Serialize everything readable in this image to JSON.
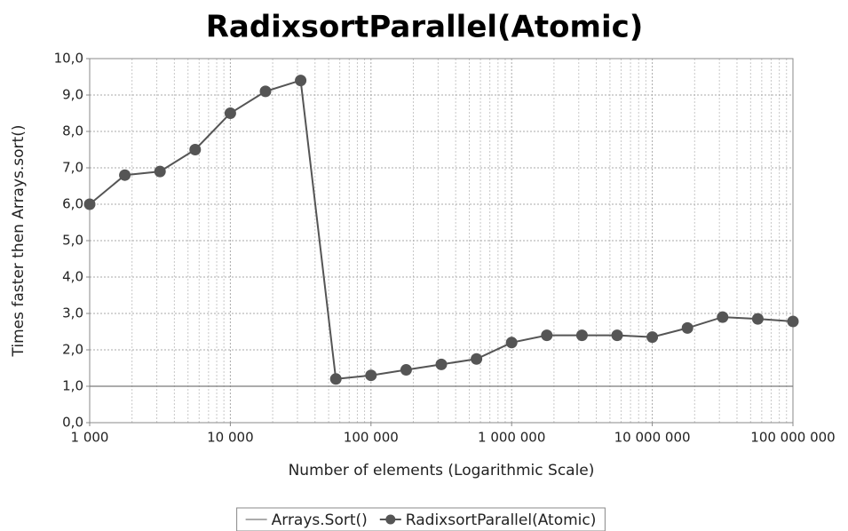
{
  "chart_data": {
    "type": "line",
    "title": "RadixsortParallel(Atomic)",
    "x_label": "Number of elements (Logarithmic Scale)",
    "y_label": "Times faster then Arrays.sort()",
    "x_log_scale": true,
    "grid": true,
    "legend": "bottom",
    "x": [
      1000,
      1778,
      3162,
      5623,
      10000,
      17783,
      31623,
      56234,
      100000,
      177828,
      316228,
      562341,
      1000000,
      1778279,
      3162278,
      5623413,
      10000000,
      17782794,
      31622777,
      56234133,
      100000000
    ],
    "series": [
      {
        "name": "Arrays.Sort()",
        "color": "#7a7a7a",
        "markers": false,
        "values": [
          1.0,
          1.0,
          1.0,
          1.0,
          1.0,
          1.0,
          1.0,
          1.0,
          1.0,
          1.0,
          1.0,
          1.0,
          1.0,
          1.0,
          1.0,
          1.0,
          1.0,
          1.0,
          1.0,
          1.0,
          1.0
        ]
      },
      {
        "name": "RadixsortParallel(Atomic)",
        "color": "#555555",
        "markers": true,
        "values": [
          6.0,
          6.8,
          6.9,
          7.5,
          8.5,
          9.1,
          9.4,
          1.2,
          1.3,
          1.45,
          1.6,
          1.75,
          2.2,
          2.4,
          2.4,
          2.4,
          2.35,
          2.6,
          2.9,
          2.85,
          2.78
        ]
      }
    ],
    "xlim": [
      1000,
      100000000
    ],
    "xticks": [
      {
        "value": 1000,
        "label": "1 000"
      },
      {
        "value": 10000,
        "label": "10 000"
      },
      {
        "value": 100000,
        "label": "100 000"
      },
      {
        "value": 1000000,
        "label": "1 000 000"
      },
      {
        "value": 10000000,
        "label": "10 000 000"
      },
      {
        "value": 100000000,
        "label": "100 000 000"
      }
    ],
    "ylim": [
      0,
      10
    ],
    "yticks": [
      {
        "value": 0,
        "label": "0,0"
      },
      {
        "value": 1,
        "label": "1,0"
      },
      {
        "value": 2,
        "label": "2,0"
      },
      {
        "value": 3,
        "label": "3,0"
      },
      {
        "value": 4,
        "label": "4,0"
      },
      {
        "value": 5,
        "label": "5,0"
      },
      {
        "value": 6,
        "label": "6,0"
      },
      {
        "value": 7,
        "label": "7,0"
      },
      {
        "value": 8,
        "label": "8,0"
      },
      {
        "value": 9,
        "label": "9,0"
      },
      {
        "value": 10,
        "label": "10,0"
      }
    ]
  }
}
